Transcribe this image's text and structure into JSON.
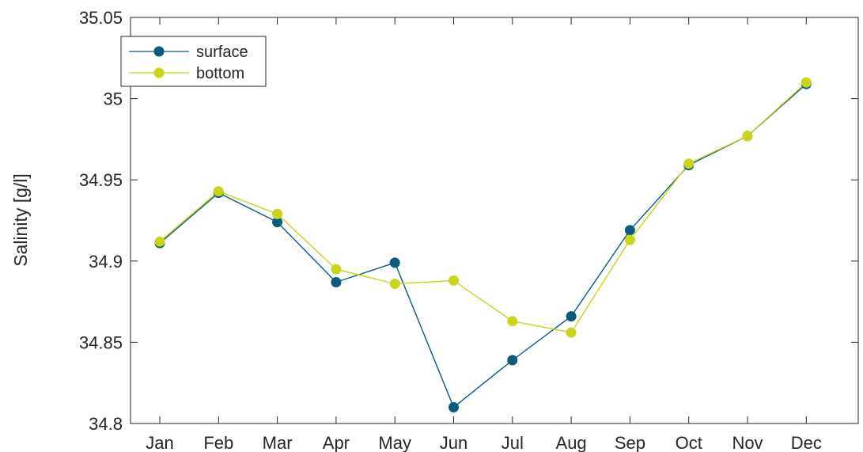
{
  "chart_data": {
    "type": "line",
    "title": "",
    "xlabel": "",
    "ylabel": "Salinity [g/l]",
    "categories": [
      "Jan",
      "Feb",
      "Mar",
      "Apr",
      "May",
      "Jun",
      "Jul",
      "Aug",
      "Sep",
      "Oct",
      "Nov",
      "Dec"
    ],
    "ylim": [
      34.8,
      35.05
    ],
    "yticks": [
      "34.8",
      "34.85",
      "34.9",
      "34.95",
      "35",
      "35.05"
    ],
    "ytick_values": [
      34.8,
      34.85,
      34.9,
      34.95,
      35.0,
      35.05
    ],
    "grid": false,
    "legend_position": "top-left",
    "series": [
      {
        "name": "surface",
        "color": "#0c5a7e",
        "marker": "circle",
        "values": [
          34.911,
          34.942,
          34.924,
          34.887,
          34.899,
          34.81,
          34.839,
          34.866,
          34.919,
          34.959,
          34.977,
          35.009
        ]
      },
      {
        "name": "bottom",
        "color": "#c9d41a",
        "marker": "circle",
        "values": [
          34.912,
          34.943,
          34.929,
          34.895,
          34.886,
          34.888,
          34.863,
          34.856,
          34.913,
          34.96,
          34.977,
          35.01
        ]
      }
    ]
  }
}
